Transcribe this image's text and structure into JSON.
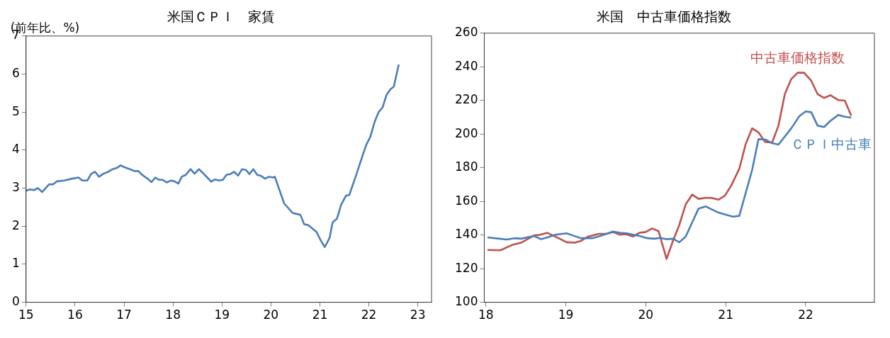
{
  "chart_data": [
    {
      "type": "line",
      "title": "米国ＣＰＩ　家賃",
      "ylabel": "(前年比、%)",
      "xlim": [
        15,
        23.28
      ],
      "xticks": [
        15,
        16,
        17,
        18,
        19,
        20,
        21,
        22,
        23
      ],
      "ylim": [
        0,
        7
      ],
      "yticks": [
        0,
        1,
        2,
        3,
        4,
        5,
        6,
        7
      ],
      "grid": false,
      "legend": false,
      "marker": "none",
      "line_style": "solid",
      "series": [
        {
          "color": "#4a7ebb",
          "x": [
            15.0,
            15.08,
            15.16,
            15.24,
            15.33,
            15.47,
            15.55,
            15.63,
            15.78,
            15.94,
            16.07,
            16.15,
            16.25,
            16.33,
            16.41,
            16.49,
            16.58,
            16.66,
            16.77,
            16.85,
            16.93,
            17.01,
            17.12,
            17.21,
            17.29,
            17.37,
            17.48,
            17.56,
            17.64,
            17.71,
            17.79,
            17.87,
            17.95,
            18.03,
            18.11,
            18.18,
            18.26,
            18.36,
            18.44,
            18.53,
            18.61,
            18.7,
            18.78,
            18.86,
            18.94,
            19.02,
            19.09,
            19.17,
            19.25,
            19.33,
            19.41,
            19.49,
            19.56,
            19.64,
            19.72,
            19.8,
            19.88,
            19.96,
            20.04,
            20.08,
            20.27,
            20.44,
            20.6,
            20.68,
            20.76,
            20.93,
            21.02,
            21.1,
            21.2,
            21.26,
            21.35,
            21.43,
            21.53,
            21.6,
            21.73,
            21.87,
            21.95,
            22.03,
            22.12,
            22.2,
            22.28,
            22.36,
            22.44,
            22.51,
            22.61
          ],
          "values": [
            2.93,
            2.97,
            2.95,
            3.0,
            2.9,
            3.1,
            3.1,
            3.18,
            3.2,
            3.25,
            3.28,
            3.2,
            3.2,
            3.38,
            3.43,
            3.3,
            3.38,
            3.42,
            3.5,
            3.53,
            3.6,
            3.55,
            3.5,
            3.45,
            3.45,
            3.35,
            3.25,
            3.16,
            3.28,
            3.22,
            3.22,
            3.15,
            3.2,
            3.18,
            3.12,
            3.3,
            3.35,
            3.5,
            3.38,
            3.5,
            3.4,
            3.28,
            3.17,
            3.23,
            3.2,
            3.22,
            3.35,
            3.37,
            3.43,
            3.33,
            3.5,
            3.48,
            3.37,
            3.5,
            3.35,
            3.32,
            3.25,
            3.3,
            3.28,
            3.3,
            2.6,
            2.35,
            2.3,
            2.05,
            2.03,
            1.85,
            1.62,
            1.45,
            1.7,
            2.1,
            2.2,
            2.55,
            2.8,
            2.82,
            3.3,
            3.85,
            4.15,
            4.35,
            4.75,
            5.0,
            5.12,
            5.45,
            5.6,
            5.67,
            6.25
          ]
        }
      ]
    },
    {
      "type": "line",
      "title": "米国　中古車価格指数",
      "xlim": [
        17.98,
        22.86
      ],
      "xticks": [
        18,
        19,
        20,
        21,
        22
      ],
      "ylim": [
        100,
        260
      ],
      "yticks": [
        100,
        120,
        140,
        160,
        180,
        200,
        220,
        240,
        260
      ],
      "grid": false,
      "legend": false,
      "marker": "none",
      "line_style": "solid",
      "series": [
        {
          "name": "ＣＰＩ中古車",
          "color": "#4a7ebb",
          "x": [
            18.02,
            18.17,
            18.26,
            18.36,
            18.44,
            18.6,
            18.69,
            18.77,
            18.87,
            19.01,
            19.09,
            19.19,
            19.33,
            19.43,
            19.59,
            19.68,
            19.76,
            19.92,
            20.02,
            20.11,
            20.18,
            20.26,
            20.34,
            20.42,
            20.5,
            20.66,
            20.75,
            20.91,
            21.09,
            21.17,
            21.33,
            21.41,
            21.5,
            21.58,
            21.66,
            21.82,
            21.92,
            22.0,
            22.07,
            22.15,
            22.23,
            22.31,
            22.41,
            22.49,
            22.57
          ],
          "values": [
            138.6,
            137.8,
            137.3,
            138.1,
            137.8,
            139.4,
            137.5,
            138.6,
            140.2,
            141.0,
            139.7,
            138.1,
            138.1,
            139.4,
            142.1,
            141.3,
            141.0,
            139.4,
            138.1,
            137.8,
            138.3,
            137.5,
            137.8,
            135.7,
            139.1,
            155.7,
            157.0,
            153.3,
            150.9,
            151.4,
            178.6,
            197.0,
            196.7,
            194.6,
            193.8,
            203.4,
            210.6,
            213.5,
            213.0,
            205.0,
            204.2,
            207.9,
            211.4,
            210.3,
            209.8
          ]
        },
        {
          "name": "中古車価格指数",
          "color": "#c0504d",
          "x": [
            18.02,
            18.18,
            18.34,
            18.44,
            18.6,
            18.68,
            18.77,
            18.9,
            19.01,
            19.11,
            19.19,
            19.27,
            19.41,
            19.51,
            19.59,
            19.67,
            19.75,
            19.84,
            19.92,
            20.0,
            20.08,
            20.16,
            20.26,
            20.34,
            20.42,
            20.5,
            20.58,
            20.66,
            20.75,
            20.82,
            20.91,
            20.99,
            21.07,
            21.17,
            21.25,
            21.33,
            21.41,
            21.49,
            21.58,
            21.66,
            21.74,
            21.82,
            21.9,
            21.98,
            22.07,
            22.15,
            22.23,
            22.31,
            22.41,
            22.49,
            22.57
          ],
          "values": [
            131.1,
            130.9,
            134.3,
            135.4,
            139.7,
            140.2,
            141.3,
            138.3,
            135.7,
            135.4,
            136.5,
            138.9,
            140.7,
            140.7,
            141.8,
            140.2,
            140.5,
            139.1,
            141.3,
            141.8,
            143.9,
            142.3,
            125.8,
            136.5,
            146.1,
            158.3,
            164.0,
            161.5,
            162.1,
            162.1,
            161.0,
            163.4,
            169.5,
            179.4,
            194.1,
            203.4,
            201.0,
            195.4,
            194.9,
            205.0,
            223.9,
            232.7,
            236.5,
            236.5,
            231.7,
            223.7,
            221.5,
            223.1,
            220.2,
            219.9,
            210.9
          ]
        }
      ]
    }
  ]
}
